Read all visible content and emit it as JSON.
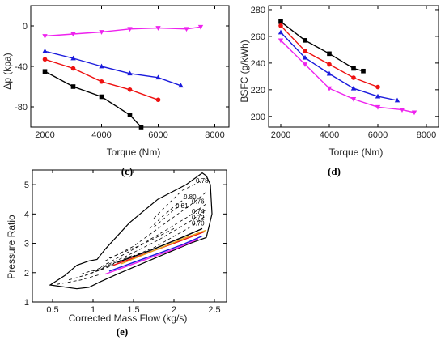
{
  "chart_data": [
    {
      "type": "line",
      "panel_label": "(c)",
      "xlabel": "Torque (Nm)",
      "ylabel": "Δp (kpa)",
      "xlim": [
        1500,
        8500
      ],
      "ylim": [
        -100,
        20
      ],
      "xticks": [
        2000,
        4000,
        6000,
        8000
      ],
      "yticks": [
        0,
        -40,
        -80
      ],
      "series": [
        {
          "color": "#000000",
          "marker": "square",
          "x": [
            2000,
            3000,
            4000,
            5000,
            5400
          ],
          "y": [
            -45,
            -60,
            -70,
            -88,
            -100
          ]
        },
        {
          "color": "#ee1111",
          "marker": "circle",
          "x": [
            2000,
            3000,
            4000,
            5000,
            6000
          ],
          "y": [
            -33,
            -42,
            -55,
            -63,
            -73
          ]
        },
        {
          "color": "#1a1adc",
          "marker": "triangle-up",
          "x": [
            2000,
            3000,
            4000,
            5000,
            6000,
            6800
          ],
          "y": [
            -25,
            -32,
            -40,
            -47,
            -51,
            -59
          ]
        },
        {
          "color": "#ee22ee",
          "marker": "triangle-down",
          "x": [
            2000,
            3000,
            4000,
            5000,
            6000,
            7000,
            7500
          ],
          "y": [
            -10,
            -8,
            -6,
            -3,
            -2,
            -3,
            -1
          ]
        }
      ]
    },
    {
      "type": "line",
      "panel_label": "(d)",
      "xlabel": "Torque (Nm)",
      "ylabel": "BSFC (g/kWh)",
      "xlim": [
        1500,
        8500
      ],
      "ylim": [
        192,
        283
      ],
      "xticks": [
        2000,
        4000,
        6000,
        8000
      ],
      "yticks": [
        200,
        220,
        240,
        260,
        280
      ],
      "series": [
        {
          "color": "#000000",
          "marker": "square",
          "x": [
            2000,
            3000,
            4000,
            5000,
            5400
          ],
          "y": [
            271,
            257,
            247,
            236,
            234
          ]
        },
        {
          "color": "#ee1111",
          "marker": "circle",
          "x": [
            2000,
            3000,
            4000,
            5000,
            6000
          ],
          "y": [
            268,
            249,
            239,
            229,
            222
          ]
        },
        {
          "color": "#1a1adc",
          "marker": "triangle-up",
          "x": [
            2000,
            3000,
            4000,
            5000,
            6000,
            6800
          ],
          "y": [
            263,
            244,
            232,
            221,
            215,
            212
          ]
        },
        {
          "color": "#ee22ee",
          "marker": "triangle-down",
          "x": [
            2000,
            3000,
            4000,
            5000,
            6000,
            7000,
            7500
          ],
          "y": [
            257,
            239,
            221,
            213,
            207,
            205,
            203
          ]
        }
      ]
    },
    {
      "type": "line",
      "panel_label": "(e)",
      "xlabel": "Corrected Mass Flow (kg/s)",
      "ylabel": "Pressure Ratio",
      "xlim": [
        0.25,
        2.65
      ],
      "ylim": [
        1.0,
        5.5
      ],
      "xticks": [
        0.5,
        1.0,
        1.5,
        2.0,
        2.5
      ],
      "yticks": [
        1,
        2,
        3,
        4,
        5
      ],
      "boundary": {
        "x": [
          0.47,
          0.8,
          0.95,
          1.1,
          1.3,
          1.6,
          1.9,
          2.2,
          2.4,
          2.47,
          2.45,
          2.4,
          2.35,
          2.25,
          2.15,
          1.8,
          1.45,
          1.15,
          1.05,
          0.95,
          0.8,
          0.65,
          0.47
        ],
        "y": [
          1.58,
          1.45,
          1.5,
          1.7,
          1.95,
          2.3,
          2.65,
          3.0,
          3.2,
          4.0,
          5.0,
          5.3,
          5.4,
          5.2,
          5.0,
          4.5,
          3.7,
          2.8,
          2.45,
          2.4,
          2.25,
          1.9,
          1.58
        ]
      },
      "efficiency_contours": [
        {
          "label": "0.78",
          "x": [
            1.75,
            1.95,
            2.1,
            2.25,
            2.35
          ],
          "y": [
            3.85,
            4.4,
            4.8,
            5.0,
            5.15
          ]
        },
        {
          "label": "0.80",
          "x": [
            1.7,
            1.85,
            2.0,
            2.1,
            2.15
          ],
          "y": [
            3.5,
            3.9,
            4.25,
            4.45,
            4.7
          ]
        },
        {
          "label": "0.76",
          "x": [
            1.15,
            1.5,
            1.85,
            2.2,
            2.4
          ],
          "y": [
            2.4,
            2.9,
            3.6,
            4.3,
            4.75
          ]
        },
        {
          "label": "0.81",
          "x": [
            1.75,
            1.9,
            2.0,
            2.1
          ],
          "y": [
            3.55,
            3.9,
            4.15,
            4.3
          ]
        },
        {
          "label": "0.74",
          "x": [
            1.1,
            1.5,
            1.9,
            2.2,
            2.4
          ],
          "y": [
            2.2,
            2.8,
            3.45,
            3.95,
            4.35
          ]
        },
        {
          "label": "0.72",
          "x": [
            1.0,
            1.4,
            1.8,
            2.2,
            2.4
          ],
          "y": [
            2.05,
            2.55,
            3.1,
            3.75,
            4.15
          ]
        },
        {
          "label": "0.70",
          "x": [
            0.9,
            1.3,
            1.75,
            2.2,
            2.4
          ],
          "y": [
            1.9,
            2.35,
            2.85,
            3.55,
            3.95
          ]
        }
      ],
      "speed_lines": [
        {
          "x": [
            0.55,
            0.85,
            1.1
          ],
          "y": [
            1.6,
            1.75,
            1.95
          ]
        },
        {
          "x": [
            0.7,
            0.95,
            1.25
          ],
          "y": [
            1.75,
            1.95,
            2.25
          ]
        },
        {
          "x": [
            0.85,
            1.15,
            1.5
          ],
          "y": [
            1.95,
            2.2,
            2.6
          ]
        },
        {
          "x": [
            1.2,
            1.6,
            2.0
          ],
          "y": [
            2.5,
            2.95,
            3.5
          ]
        }
      ],
      "series": [
        {
          "color": "#000000",
          "x": [
            1.3,
            1.7,
            2.1,
            2.35
          ],
          "y": [
            2.35,
            2.75,
            3.2,
            3.5
          ]
        },
        {
          "color": "#ee1111",
          "x": [
            1.25,
            1.7,
            2.1,
            2.38
          ],
          "y": [
            2.25,
            2.7,
            3.1,
            3.4
          ]
        },
        {
          "color": "#e8a41a",
          "x": [
            1.35,
            1.75,
            2.15,
            2.4
          ],
          "y": [
            2.3,
            2.75,
            3.2,
            3.45
          ]
        },
        {
          "color": "#1a1adc",
          "x": [
            1.2,
            1.65,
            2.1,
            2.35
          ],
          "y": [
            2.05,
            2.5,
            2.95,
            3.25
          ]
        },
        {
          "color": "#ee22ee",
          "x": [
            1.15,
            1.6,
            2.05,
            2.3
          ],
          "y": [
            1.95,
            2.4,
            2.85,
            3.15
          ]
        }
      ]
    }
  ]
}
